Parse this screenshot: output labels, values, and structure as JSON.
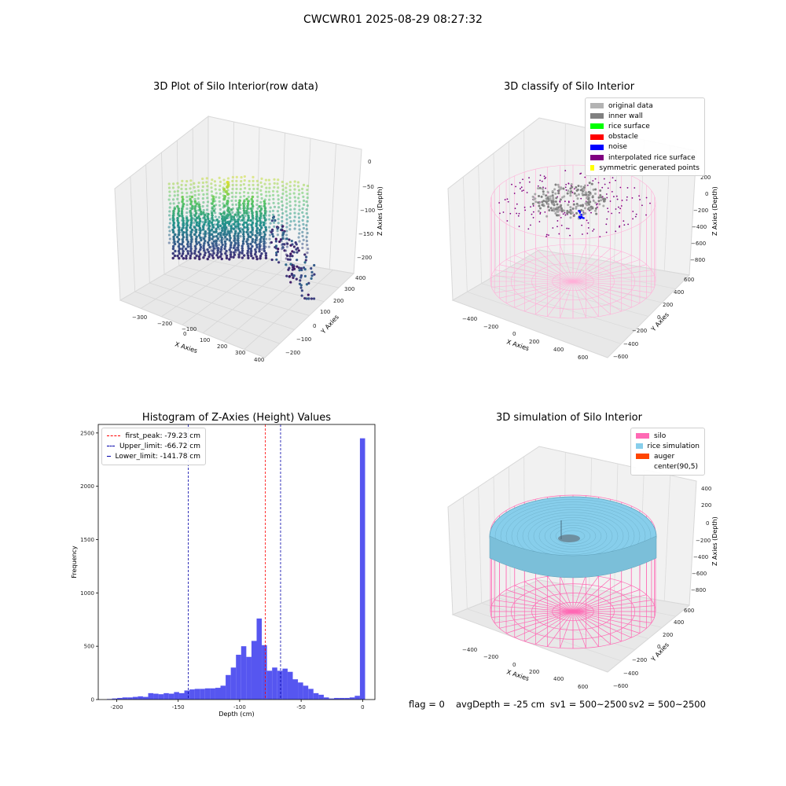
{
  "suptitle": "CWCWR01 2025-08-29 08:27:32",
  "panels": {
    "raw": {
      "title": "3D Plot of Silo Interior(row data)",
      "xlabel": "X Axies",
      "ylabel": "Y Axies",
      "zlabel": "Z Axies (Depth)",
      "xticks": [
        "−300",
        "−200",
        "−100",
        "0",
        "100",
        "200",
        "300",
        "400"
      ],
      "yticks": [
        "−200",
        "−100",
        "0",
        "100",
        "200",
        "300",
        "400"
      ],
      "zticks": [
        "0",
        "−50",
        "−100",
        "−150",
        "−200"
      ]
    },
    "classify": {
      "title": "3D classify of Silo Interior",
      "xlabel": "X Axies",
      "ylabel": "Y Axies",
      "zlabel": "Z Axies (Depth)",
      "xticks": [
        "−400",
        "−200",
        "0",
        "200",
        "400",
        "600"
      ],
      "yticks": [
        "−600",
        "−400",
        "−200",
        "0",
        "200",
        "400",
        "600"
      ],
      "zticks": [
        "200",
        "0",
        "−200",
        "−400",
        "−600",
        "−800"
      ],
      "legend": [
        {
          "label": "original data",
          "color": "#b3b3b3"
        },
        {
          "label": "inner wall",
          "color": "#808080"
        },
        {
          "label": "rice surface",
          "color": "#00ff00"
        },
        {
          "label": "obstacle",
          "color": "#ff0000"
        },
        {
          "label": "noise",
          "color": "#0000ff"
        },
        {
          "label": "interpolated rice surface",
          "color": "#800080"
        },
        {
          "label": "symmetric generated points",
          "color": "#ffff00"
        }
      ]
    },
    "simulation": {
      "title": "3D simulation of Silo Interior",
      "xlabel": "X Axies",
      "ylabel": "Y Axies",
      "zlabel": "Z Axies (Depth)",
      "xticks": [
        "−400",
        "−200",
        "0",
        "200",
        "400",
        "600"
      ],
      "yticks": [
        "−600",
        "−400",
        "−200",
        "0",
        "200",
        "400",
        "600"
      ],
      "zticks": [
        "400",
        "200",
        "0",
        "−200",
        "−400",
        "−600",
        "−800"
      ],
      "legend": [
        {
          "label": "silo",
          "color": "#ff69b4"
        },
        {
          "label": "rice simulation",
          "color": "#87ceeb"
        },
        {
          "label": "auger",
          "color": "#ff4500"
        },
        {
          "label": "center(90,5)",
          "color": "#ffffff"
        }
      ]
    }
  },
  "chart_data": [
    {
      "type": "bar",
      "title": "Histogram of Z-Axies (Height) Values",
      "xlabel": "Depth (cm)",
      "ylabel": "Frequency",
      "xlim": [
        -215,
        10
      ],
      "ylim": [
        0,
        2580
      ],
      "xticks": [
        -200,
        -150,
        -100,
        -50,
        0
      ],
      "yticks": [
        0,
        500,
        1000,
        1500,
        2000,
        2500
      ],
      "bar_color": "#4444ee",
      "bin_width": 4.2,
      "bin_start": -208,
      "values": [
        5,
        10,
        15,
        20,
        20,
        25,
        30,
        25,
        60,
        55,
        50,
        60,
        55,
        70,
        60,
        85,
        95,
        100,
        100,
        105,
        105,
        110,
        130,
        230,
        300,
        420,
        500,
        400,
        550,
        760,
        510,
        270,
        300,
        270,
        290,
        260,
        190,
        160,
        130,
        100,
        60,
        45,
        20,
        10,
        15,
        15,
        15,
        20,
        35,
        2450
      ],
      "lines": [
        {
          "label": "first_peak: -79.23 cm",
          "value": -79.23,
          "color": "#ff0000"
        },
        {
          "label": "Upper_limit: -66.72 cm",
          "value": -66.72,
          "color": "#0000aa"
        },
        {
          "label": "Lower_limit: -141.78 cm",
          "value": -141.78,
          "color": "#0000aa"
        }
      ]
    }
  ],
  "status": {
    "flag": "flag = 0",
    "avg": "avgDepth = -25 cm",
    "sv1": "sv1 = 500~2500",
    "sv2": "sv2 = 500~2500"
  }
}
